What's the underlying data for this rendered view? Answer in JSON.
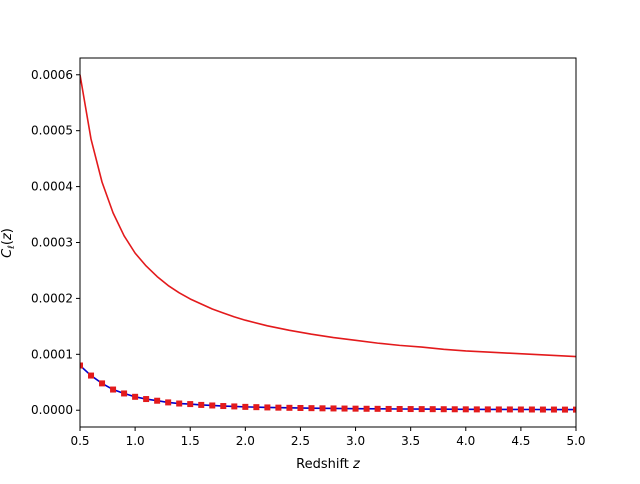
{
  "chart_data": {
    "type": "line",
    "xlabel": "Redshift z",
    "ylabel": "C_ℓ(z)",
    "xlim": [
      0.5,
      5.0
    ],
    "ylim": [
      -3e-05,
      0.00063
    ],
    "xticks": [
      "0.5",
      "1.0",
      "1.5",
      "2.0",
      "2.5",
      "3.0",
      "3.5",
      "4.0",
      "4.5",
      "5.0"
    ],
    "xtick_values": [
      0.5,
      1.0,
      1.5,
      2.0,
      2.5,
      3.0,
      3.5,
      4.0,
      4.5,
      5.0
    ],
    "yticks": [
      "0.0000",
      "0.0001",
      "0.0002",
      "0.0003",
      "0.0004",
      "0.0005",
      "0.0006"
    ],
    "ytick_values": [
      0.0,
      0.0001,
      0.0002,
      0.0003,
      0.0004,
      0.0005,
      0.0006
    ],
    "grid": false,
    "legend": "none",
    "series": [
      {
        "color": "#e31a1c",
        "style": "line",
        "x": [
          0.5,
          0.6,
          0.7,
          0.8,
          0.9,
          1.0,
          1.1,
          1.2,
          1.3,
          1.4,
          1.5,
          1.6,
          1.7,
          1.8,
          1.9,
          2.0,
          2.2,
          2.4,
          2.6,
          2.8,
          3.0,
          3.2,
          3.4,
          3.6,
          3.8,
          4.0,
          4.2,
          4.4,
          4.6,
          4.8,
          5.0
        ],
        "y": [
          0.0006,
          0.000485,
          0.000408,
          0.000353,
          0.000312,
          0.000281,
          0.000258,
          0.000239,
          0.000223,
          0.00021,
          0.000199,
          0.00019,
          0.000181,
          0.000174,
          0.000167,
          0.000161,
          0.000151,
          0.000143,
          0.000136,
          0.00013,
          0.000125,
          0.00012,
          0.000116,
          0.000113,
          0.000109,
          0.000106,
          0.000104,
          0.000102,
          0.0001,
          9.8e-05,
          9.6e-05
        ]
      },
      {
        "color": "#0000cc",
        "style": "line",
        "x": [
          0.5,
          0.6,
          0.7,
          0.8,
          0.9,
          1.0,
          1.1,
          1.2,
          1.3,
          1.4,
          1.5,
          1.6,
          1.7,
          1.8,
          1.9,
          2.0,
          2.2,
          2.4,
          2.6,
          2.8,
          3.0,
          3.2,
          3.4,
          3.6,
          3.8,
          4.0,
          4.2,
          4.4,
          4.6,
          4.8,
          5.0
        ],
        "y": [
          8e-05,
          6.2e-05,
          4.8e-05,
          3.7e-05,
          3e-05,
          2.4e-05,
          2e-05,
          1.7e-05,
          1.4e-05,
          1.2e-05,
          1.1e-05,
          9.5e-06,
          8.5e-06,
          7.5e-06,
          6.8e-06,
          6e-06,
          5e-06,
          4.3e-06,
          3.7e-06,
          3.2e-06,
          2.8e-06,
          2.5e-06,
          2.2e-06,
          2e-06,
          1.8e-06,
          1.6e-06,
          1.5e-06,
          1.4e-06,
          1.3e-06,
          1.2e-06,
          1.1e-06
        ]
      },
      {
        "color": "#e31a1c",
        "style": "markers",
        "x": [
          0.5,
          0.6,
          0.7,
          0.8,
          0.9,
          1.0,
          1.1,
          1.2,
          1.3,
          1.4,
          1.5,
          1.6,
          1.7,
          1.8,
          1.9,
          2.0,
          2.1,
          2.2,
          2.3,
          2.4,
          2.5,
          2.6,
          2.7,
          2.8,
          2.9,
          3.0,
          3.1,
          3.2,
          3.3,
          3.4,
          3.5,
          3.6,
          3.7,
          3.8,
          3.9,
          4.0,
          4.1,
          4.2,
          4.3,
          4.4,
          4.5,
          4.6,
          4.7,
          4.8,
          4.9,
          5.0
        ],
        "y": [
          8e-05,
          6.2e-05,
          4.8e-05,
          3.7e-05,
          3e-05,
          2.4e-05,
          2e-05,
          1.7e-05,
          1.4e-05,
          1.2e-05,
          1.1e-05,
          9.5e-06,
          8.5e-06,
          7.5e-06,
          6.8e-06,
          6e-06,
          5.5e-06,
          5e-06,
          4.6e-06,
          4.3e-06,
          4e-06,
          3.7e-06,
          3.4e-06,
          3.2e-06,
          3e-06,
          2.8e-06,
          2.6e-06,
          2.5e-06,
          2.3e-06,
          2.2e-06,
          2.1e-06,
          2e-06,
          1.9e-06,
          1.8e-06,
          1.7e-06,
          1.6e-06,
          1.5e-06,
          1.5e-06,
          1.4e-06,
          1.4e-06,
          1.3e-06,
          1.3e-06,
          1.2e-06,
          1.2e-06,
          1.1e-06,
          1.1e-06
        ]
      }
    ]
  }
}
